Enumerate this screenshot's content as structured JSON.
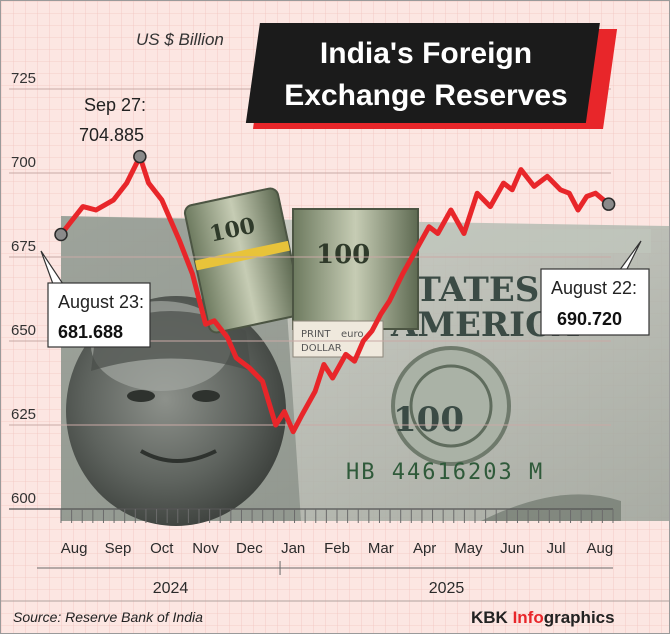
{
  "header": {
    "title_line1": "India's Foreign",
    "title_line2": "Exchange Reserves",
    "unit": "US $ Billion"
  },
  "footer": {
    "source": "Source: Reserve Bank of India",
    "brand_part1": "KBK ",
    "brand_part2": "Info",
    "brand_part3": "graphics"
  },
  "banknote": {
    "serial": "HB 44616203 M",
    "text_top": "STATES OF",
    "text_mid": "AMERICA",
    "denomination": "100",
    "band_print": "PRINT",
    "band_euro": "euro",
    "band_dollar": "DOLLAR"
  },
  "colors": {
    "background": "#fce6e2",
    "grid": "#f2b8b2",
    "line": "#e8262a",
    "title_box": "#1b1b1b",
    "title_shadow": "#e8262a"
  },
  "callouts": {
    "start": {
      "date": "August 23:",
      "value": "681.688"
    },
    "peak": {
      "date": "Sep 27:",
      "value": "704.885"
    },
    "end": {
      "date": "August 22:",
      "value": "690.720"
    }
  },
  "chart_data": {
    "type": "line",
    "title": "India's Foreign Exchange Reserves",
    "ylabel": "US $ Billion",
    "ylim": [
      600,
      725
    ],
    "yticks": [
      600,
      625,
      650,
      675,
      700,
      725
    ],
    "months": [
      "Aug",
      "Sep",
      "Oct",
      "Nov",
      "Dec",
      "Jan",
      "Feb",
      "Mar",
      "Apr",
      "May",
      "Jun",
      "Jul",
      "Aug"
    ],
    "month_pos": [
      0.3,
      1.3,
      2.3,
      3.3,
      4.3,
      5.3,
      6.3,
      7.3,
      8.3,
      9.3,
      10.3,
      11.3,
      12.3
    ],
    "years": [
      {
        "label": "2024",
        "month_start": 0,
        "month_end": 5
      },
      {
        "label": "2025",
        "month_start": 5,
        "month_end": 13
      }
    ],
    "grid": true,
    "series": [
      {
        "x": [
          0.0,
          0.5,
          0.8,
          1.2,
          1.5,
          1.8,
          2.0,
          2.3,
          2.5,
          2.7,
          3.0,
          3.3,
          3.5,
          3.8,
          4.0,
          4.3,
          4.6,
          4.9,
          5.1,
          5.3,
          5.5,
          5.8,
          6.0,
          6.2,
          6.5,
          6.7,
          6.9,
          7.1,
          7.3,
          7.5,
          7.8,
          8.1,
          8.4,
          8.6,
          8.9,
          9.2,
          9.5,
          9.8,
          10.1,
          10.3,
          10.5,
          10.8,
          11.1,
          11.4,
          11.6,
          11.8,
          12.0,
          12.2,
          12.5
        ],
        "values": [
          681.688,
          690,
          689,
          692,
          697,
          704.885,
          697,
          692,
          686,
          680,
          670,
          655,
          656,
          651,
          645,
          642,
          638,
          625,
          629,
          623,
          628,
          635,
          643,
          639,
          646,
          644,
          650,
          653,
          658,
          662,
          670,
          677,
          684,
          682,
          689,
          682,
          694,
          690,
          697,
          695,
          701,
          696,
          699,
          695,
          694,
          689,
          693,
          694,
          690.72
        ]
      }
    ],
    "annotations": [
      {
        "label": "Sep 27",
        "value": 704.885
      },
      {
        "label": "August 23",
        "value": 681.688
      },
      {
        "label": "August 22",
        "value": 690.72
      }
    ]
  }
}
